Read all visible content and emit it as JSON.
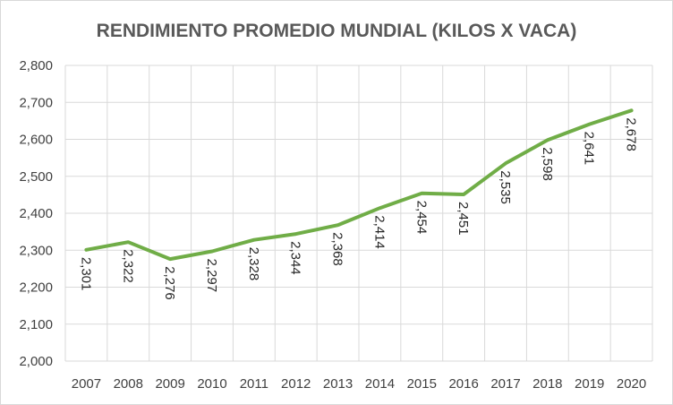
{
  "chart_data": {
    "type": "line",
    "title": "RENDIMIENTO PROMEDIO MUNDIAL (KILOS X VACA)",
    "xlabel": "",
    "ylabel": "",
    "categories": [
      "2007",
      "2008",
      "2009",
      "2010",
      "2011",
      "2012",
      "2013",
      "2014",
      "2015",
      "2016",
      "2017",
      "2018",
      "2019",
      "2020"
    ],
    "series": [
      {
        "values": [
          2301,
          2322,
          2276,
          2297,
          2328,
          2344,
          2368,
          2414,
          2454,
          2451,
          2535,
          2598,
          2641,
          2678
        ],
        "labels": [
          "2,301",
          "2,322",
          "2,276",
          "2,297",
          "2,328",
          "2,344",
          "2,368",
          "2,414",
          "2,454",
          "2,451",
          "2,535",
          "2,598",
          "2,641",
          "2,678"
        ],
        "color": "#70AD47"
      }
    ],
    "ylim": [
      2000,
      2800
    ],
    "yticks": [
      {
        "value": 2000,
        "label": "2,000"
      },
      {
        "value": 2100,
        "label": "2,100"
      },
      {
        "value": 2200,
        "label": "2,200"
      },
      {
        "value": 2300,
        "label": "2,300"
      },
      {
        "value": 2400,
        "label": "2,400"
      },
      {
        "value": 2500,
        "label": "2,500"
      },
      {
        "value": 2600,
        "label": "2,600"
      },
      {
        "value": 2700,
        "label": "2,700"
      },
      {
        "value": 2800,
        "label": "2,800"
      }
    ],
    "grid": true,
    "legend": "none",
    "gridline_color": "#D9D9D9"
  }
}
